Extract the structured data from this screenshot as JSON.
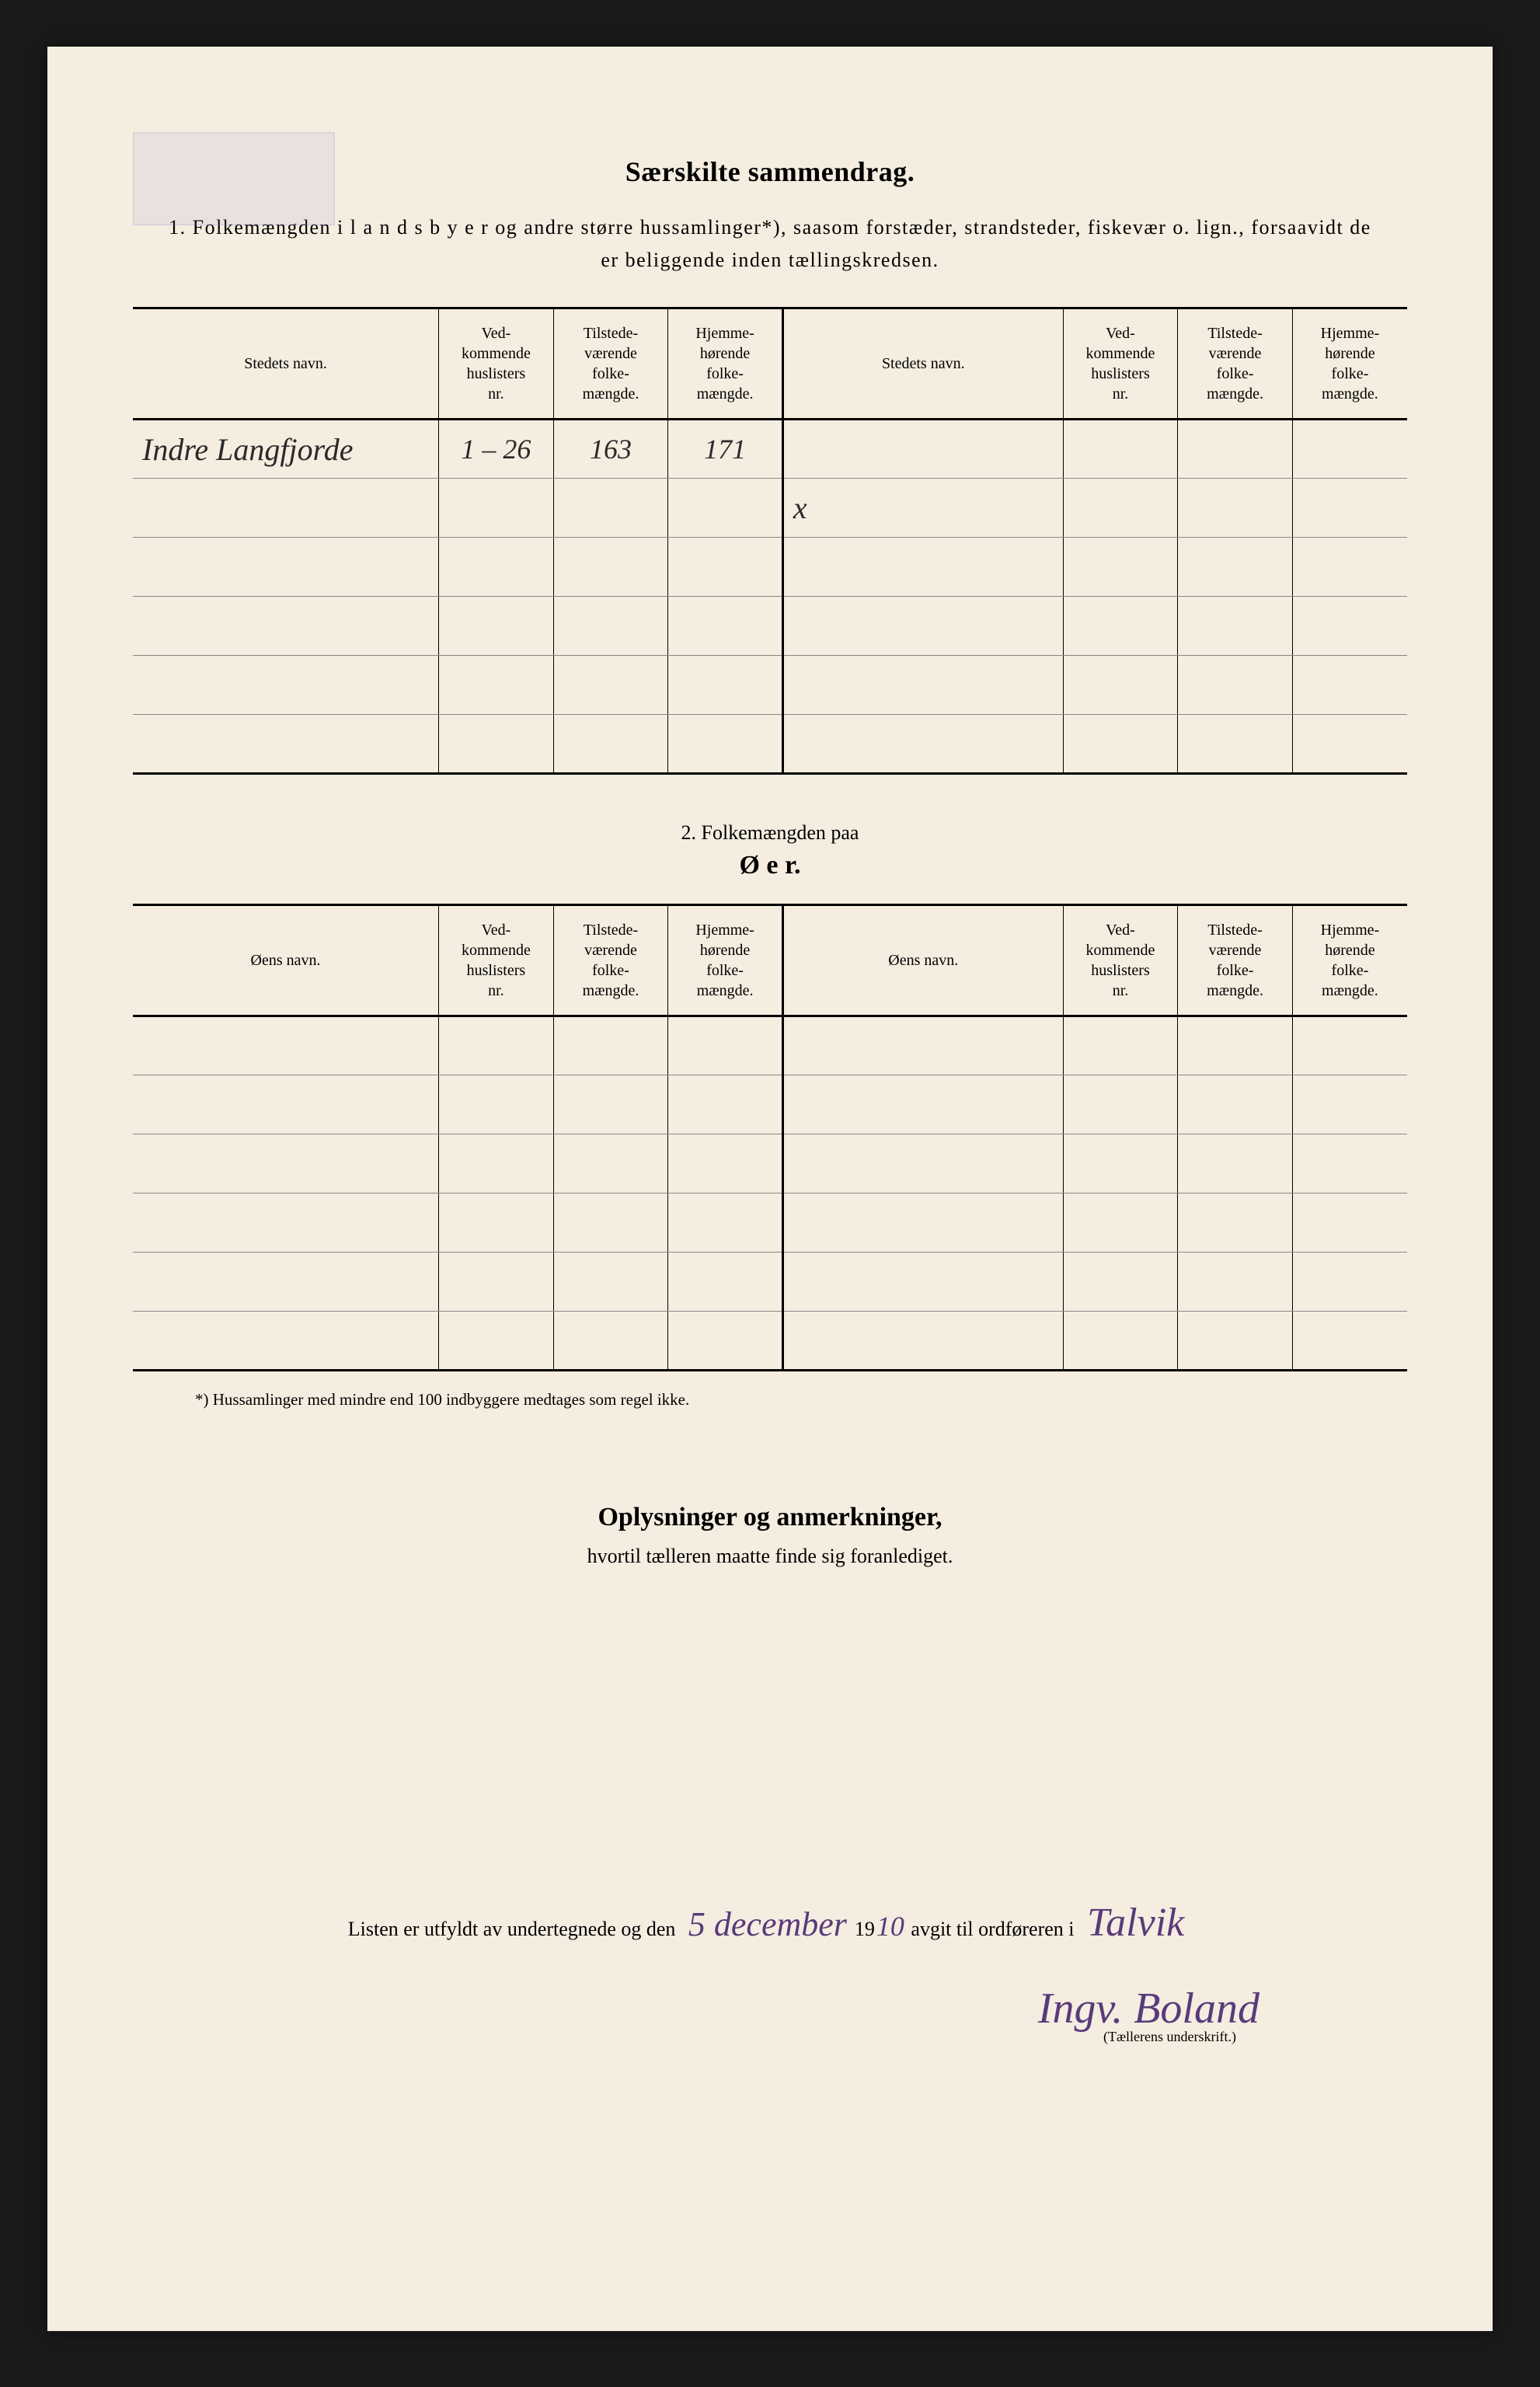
{
  "title_main": "Særskilte sammendrag.",
  "subtitle": "1.  Folkemængden  i l a n d s b y e r  og andre større hussamlinger*), saasom forstæder, strandsteder, fiskevær o. lign., forsaavidt de er beliggende inden tællingskredsen.",
  "table1": {
    "headers": {
      "name": "Stedets navn.",
      "col1": "Ved-\nkommende\nhuslisters\nnr.",
      "col2": "Tilstede-\nværende\nfolke-\nmængde.",
      "col3": "Hjemme-\nhørende\nfolke-\nmængde.",
      "name2": "Stedets navn.",
      "col4": "Ved-\nkommende\nhuslisters\nnr.",
      "col5": "Tilstede-\nværende\nfolke-\nmængde.",
      "col6": "Hjemme-\nhørende\nfolke-\nmængde."
    },
    "rows": [
      {
        "name": "Indre Langfjorde",
        "c1": "1 – 26",
        "c2": "163",
        "c3": "171",
        "name2": "",
        "c4": "",
        "c5": "",
        "c6": ""
      },
      {
        "name": "",
        "c1": "",
        "c2": "",
        "c3": "",
        "name2": "x",
        "c4": "",
        "c5": "",
        "c6": ""
      },
      {
        "name": "",
        "c1": "",
        "c2": "",
        "c3": "",
        "name2": "",
        "c4": "",
        "c5": "",
        "c6": ""
      },
      {
        "name": "",
        "c1": "",
        "c2": "",
        "c3": "",
        "name2": "",
        "c4": "",
        "c5": "",
        "c6": ""
      },
      {
        "name": "",
        "c1": "",
        "c2": "",
        "c3": "",
        "name2": "",
        "c4": "",
        "c5": "",
        "c6": ""
      },
      {
        "name": "",
        "c1": "",
        "c2": "",
        "c3": "",
        "name2": "",
        "c4": "",
        "c5": "",
        "c6": ""
      }
    ]
  },
  "section2": {
    "label": "2.   Folkemængden paa",
    "title": "Ø e r."
  },
  "table2": {
    "headers": {
      "name": "Øens navn.",
      "col1": "Ved-\nkommende\nhuslisters\nnr.",
      "col2": "Tilstede-\nværende\nfolke-\nmængde.",
      "col3": "Hjemme-\nhørende\nfolke-\nmængde.",
      "name2": "Øens navn.",
      "col4": "Ved-\nkommende\nhuslisters\nnr.",
      "col5": "Tilstede-\nværende\nfolke-\nmængde.",
      "col6": "Hjemme-\nhørende\nfolke-\nmængde."
    },
    "row_count": 6
  },
  "footnote": "*) Hussamlinger med mindre end 100 indbyggere medtages som regel ikke.",
  "notes": {
    "title": "Oplysninger og anmerkninger,",
    "sub": "hvortil tælleren maatte finde sig foranlediget."
  },
  "signature": {
    "prefix": "Listen er utfyldt av undertegnede og den",
    "date_hand": "5 december",
    "year_print": "19",
    "year_hand": "10",
    "mid": " avgit til ordføreren i",
    "place_hand": "Talvik",
    "name_hand": "Ingv. Boland",
    "caption": "(Tællerens underskrift.)"
  },
  "colors": {
    "page_bg": "#f5ede0",
    "outer_bg": "#1a1a1a",
    "ink": "#000000",
    "handwriting": "#2a2a2a",
    "handwriting_purple": "#5a3a7a",
    "rule_light": "#888888"
  }
}
